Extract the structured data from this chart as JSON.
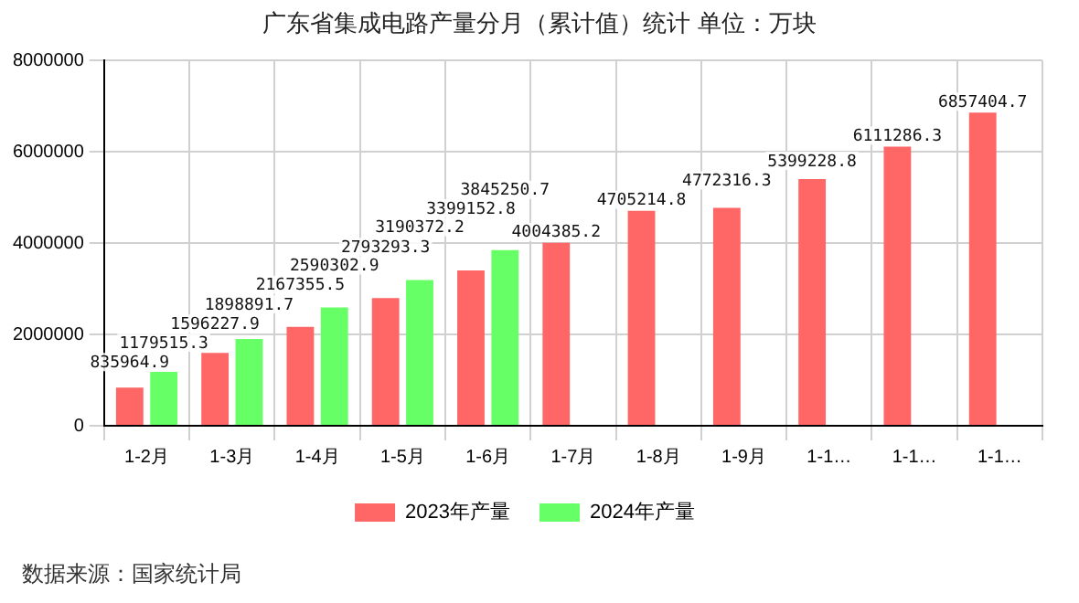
{
  "chart_data": {
    "type": "bar",
    "title": "广东省集成电路产量分月（累计值）统计 单位：万块",
    "categories": [
      "1-2月",
      "1-3月",
      "1-4月",
      "1-5月",
      "1-6月",
      "1-7月",
      "1-8月",
      "1-9月",
      "1-1…",
      "1-1…",
      "1-1…"
    ],
    "series": [
      {
        "name": "2023年产量",
        "color": "#ff6666",
        "values": [
          835964.9,
          1596227.9,
          2167355.5,
          2793293.3,
          3399152.8,
          4004385.2,
          4705214.8,
          4772316.3,
          5399228.8,
          6111286.3,
          6857404.7
        ]
      },
      {
        "name": "2024年产量",
        "color": "#66ff66",
        "values": [
          1179515.3,
          1898891.7,
          2590302.9,
          3190372.2,
          3845250.7,
          null,
          null,
          null,
          null,
          null,
          null
        ]
      }
    ],
    "ylim": [
      0,
      8000000
    ],
    "yticks": [
      0,
      2000000,
      4000000,
      6000000,
      8000000
    ],
    "grid": true,
    "legend": "bottom",
    "data_labels": true,
    "annotations": [
      "数据来源：国家统计局"
    ]
  }
}
